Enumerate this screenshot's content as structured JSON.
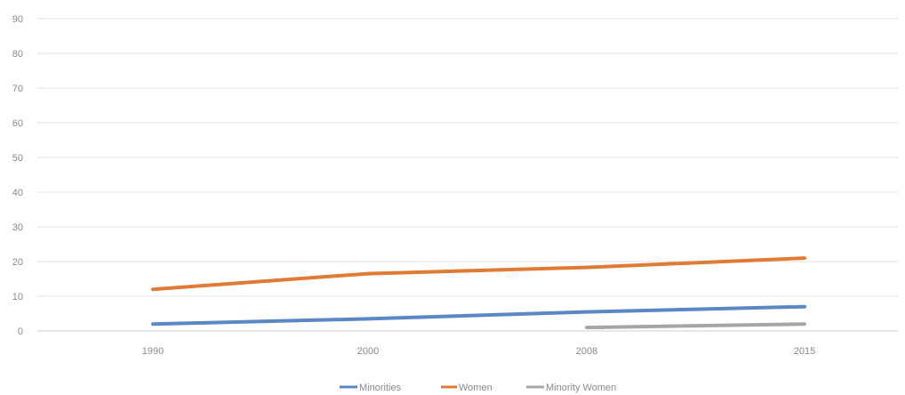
{
  "chart_data": {
    "type": "line",
    "categories": [
      "1990",
      "2000",
      "2008",
      "2015"
    ],
    "series": [
      {
        "name": "Minorities",
        "color": "#5b87c5",
        "values": [
          2,
          3.5,
          5.5,
          7
        ]
      },
      {
        "name": "Women",
        "color": "#e07b35",
        "values": [
          12,
          16.5,
          18.3,
          21
        ]
      },
      {
        "name": "Minority Women",
        "color": "#a5a5a5",
        "values": [
          null,
          null,
          1,
          2
        ]
      }
    ],
    "ylim": [
      0,
      90
    ],
    "yticks": [
      "0",
      "10",
      "20",
      "30",
      "40",
      "50",
      "60",
      "70",
      "80",
      "90"
    ],
    "title": "",
    "xlabel": "",
    "ylabel": "",
    "grid": true,
    "legend_position": "bottom"
  }
}
